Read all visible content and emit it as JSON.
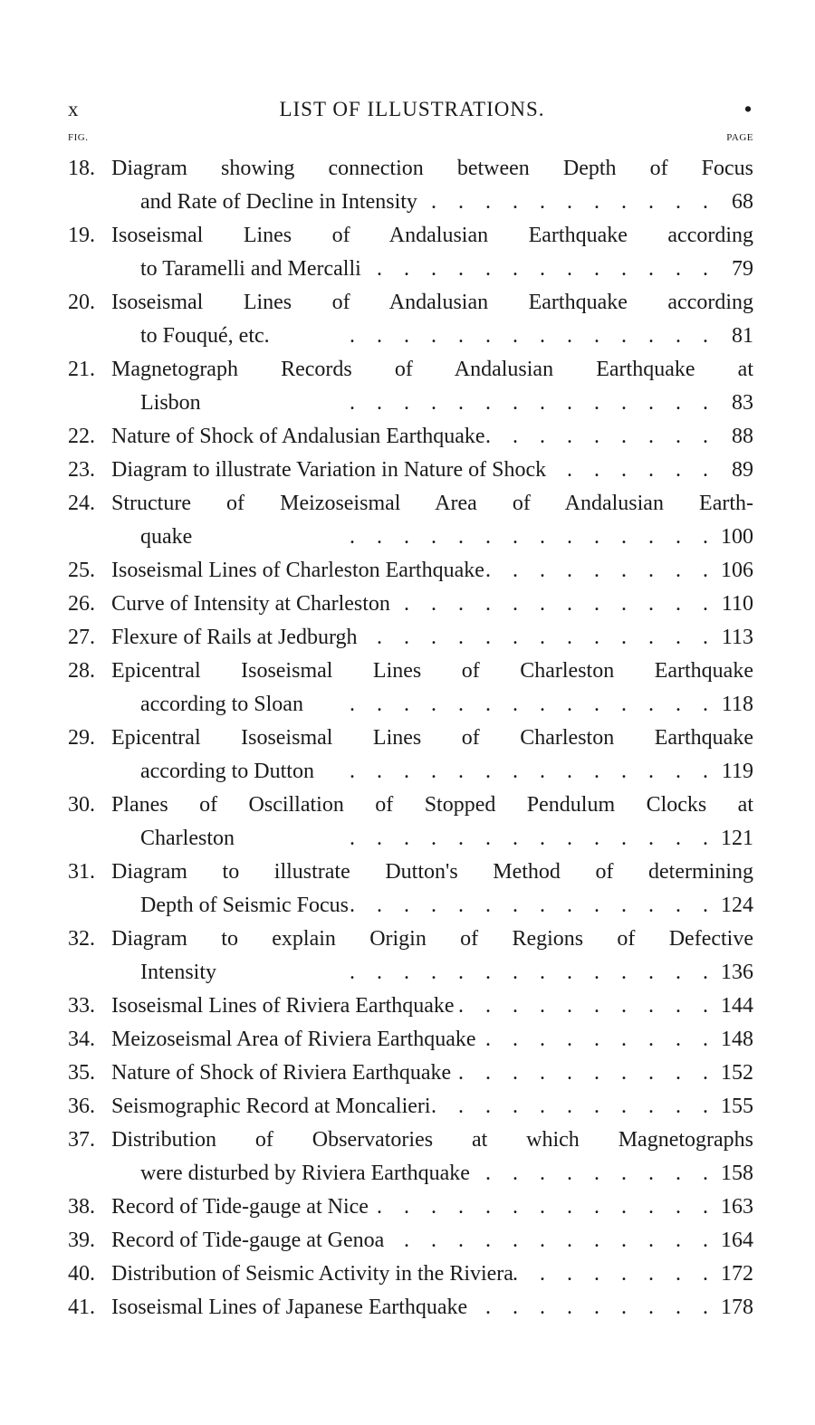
{
  "header": {
    "folio": "x",
    "title": "LIST OF ILLUSTRATIONS.",
    "mark": "•"
  },
  "columns": {
    "fig": "FIG.",
    "page": "PAGE"
  },
  "entries": [
    {
      "num": "18.",
      "lines": [
        "Diagram showing connection between Depth of Focus",
        "and Rate of Decline in Intensity"
      ],
      "page": "68"
    },
    {
      "num": "19.",
      "lines": [
        "Isoseismal Lines of Andalusian Earthquake according",
        "to Taramelli and Mercalli"
      ],
      "page": "79"
    },
    {
      "num": "20.",
      "lines": [
        "Isoseismal Lines of Andalusian Earthquake according",
        "to Fouqué, etc."
      ],
      "page": "81"
    },
    {
      "num": "21.",
      "lines": [
        "Magnetograph Records of Andalusian Earthquake at",
        "Lisbon"
      ],
      "page": "83"
    },
    {
      "num": "22.",
      "lines": [
        "Nature of Shock of Andalusian Earthquake"
      ],
      "page": "88"
    },
    {
      "num": "23.",
      "lines": [
        "Diagram to illustrate Variation in Nature of Shock"
      ],
      "page": "89"
    },
    {
      "num": "24.",
      "lines": [
        "Structure of Meizoseismal Area of Andalusian Earth-",
        "quake"
      ],
      "page": "100"
    },
    {
      "num": "25.",
      "lines": [
        "Isoseismal Lines of Charleston Earthquake"
      ],
      "page": "106"
    },
    {
      "num": "26.",
      "lines": [
        "Curve of Intensity at Charleston"
      ],
      "page": "110"
    },
    {
      "num": "27.",
      "lines": [
        "Flexure of Rails at Jedburgh"
      ],
      "page": "113"
    },
    {
      "num": "28.",
      "lines": [
        "Epicentral Isoseismal Lines of Charleston Earthquake",
        "according to Sloan"
      ],
      "page": "118"
    },
    {
      "num": "29.",
      "lines": [
        "Epicentral Isoseismal Lines of Charleston Earthquake",
        "according to Dutton"
      ],
      "page": "119"
    },
    {
      "num": "30.",
      "lines": [
        "Planes of Oscillation of Stopped Pendulum Clocks at",
        "Charleston"
      ],
      "page": "121"
    },
    {
      "num": "31.",
      "lines": [
        "Diagram to illustrate Dutton's Method of determining",
        "Depth of Seismic Focus"
      ],
      "page": "124"
    },
    {
      "num": "32.",
      "lines": [
        "Diagram to explain Origin of Regions of Defective",
        "Intensity"
      ],
      "page": "136"
    },
    {
      "num": "33.",
      "lines": [
        "Isoseismal Lines of Riviera Earthquake"
      ],
      "page": "144"
    },
    {
      "num": "34.",
      "lines": [
        "Meizoseismal Area of Riviera Earthquake"
      ],
      "page": "148"
    },
    {
      "num": "35.",
      "lines": [
        "Nature of Shock of Riviera Earthquake"
      ],
      "page": "152"
    },
    {
      "num": "36.",
      "lines": [
        "Seismographic Record at Moncalieri"
      ],
      "page": "155"
    },
    {
      "num": "37.",
      "lines": [
        "Distribution of Observatories at which Magnetographs",
        "were disturbed by Riviera Earthquake"
      ],
      "page": "158"
    },
    {
      "num": "38.",
      "lines": [
        "Record of Tide-gauge at Nice"
      ],
      "page": "163"
    },
    {
      "num": "39.",
      "lines": [
        "Record of Tide-gauge at Genoa"
      ],
      "page": "164"
    },
    {
      "num": "40.",
      "lines": [
        "Distribution of Seismic Activity in the Riviera"
      ],
      "page": "172"
    },
    {
      "num": "41.",
      "lines": [
        "Isoseismal Lines of Japanese Earthquake"
      ],
      "page": "178"
    }
  ]
}
